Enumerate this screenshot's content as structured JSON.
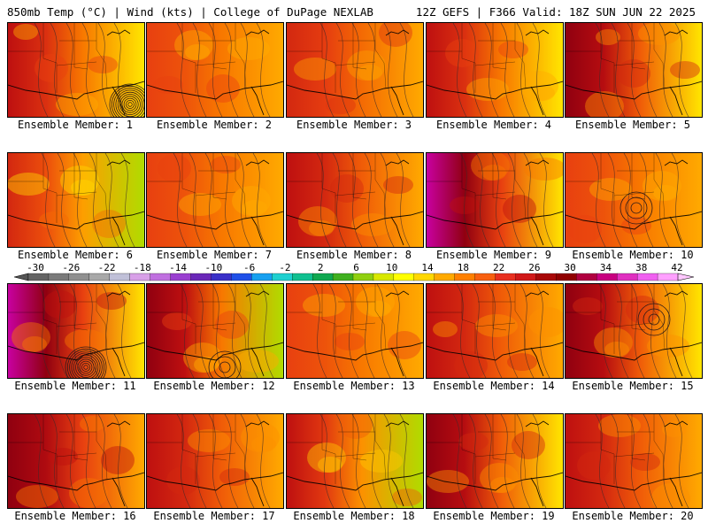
{
  "header": {
    "left": "850mb Temp (°C) | Wind (kts) | College of DuPage NEXLAB",
    "right": "12Z GEFS | F366 Valid: 18Z SUN JUN 22 2025"
  },
  "chart_data": {
    "type": "heatmap",
    "title": "850mb Temp (°C) | Wind (kts)",
    "subtitle": "12Z GEFS | F366 Valid: 18Z SUN JUN 22 2025",
    "panels": [
      {
        "label": "Ensemble Member: 1",
        "west_temp": 30,
        "east_temp": 14,
        "low_center": "southeast",
        "strong_low": true
      },
      {
        "label": "Ensemble Member: 2",
        "west_temp": 26,
        "east_temp": 18
      },
      {
        "label": "Ensemble Member: 3",
        "west_temp": 28,
        "east_temp": 18
      },
      {
        "label": "Ensemble Member: 4",
        "west_temp": 30,
        "east_temp": 14
      },
      {
        "label": "Ensemble Member: 5",
        "west_temp": 34,
        "east_temp": 14
      },
      {
        "label": "Ensemble Member: 6",
        "west_temp": 28,
        "east_temp": 10
      },
      {
        "label": "Ensemble Member: 7",
        "west_temp": 26,
        "east_temp": 18
      },
      {
        "label": "Ensemble Member: 8",
        "west_temp": 30,
        "east_temp": 18
      },
      {
        "label": "Ensemble Member: 9",
        "west_temp": 38,
        "east_temp": 14
      },
      {
        "label": "Ensemble Member: 10",
        "west_temp": 26,
        "east_temp": 18,
        "low_center": "center"
      },
      {
        "label": "Ensemble Member: 11",
        "west_temp": 38,
        "east_temp": 14,
        "low_center": "south",
        "strong_low": true
      },
      {
        "label": "Ensemble Member: 12",
        "west_temp": 34,
        "east_temp": 10,
        "low_center": "south"
      },
      {
        "label": "Ensemble Member: 13",
        "west_temp": 26,
        "east_temp": 18
      },
      {
        "label": "Ensemble Member: 14",
        "west_temp": 30,
        "east_temp": 18
      },
      {
        "label": "Ensemble Member: 15",
        "west_temp": 34,
        "east_temp": 14,
        "low_center": "northeast"
      },
      {
        "label": "Ensemble Member: 16",
        "west_temp": 34,
        "east_temp": 18
      },
      {
        "label": "Ensemble Member: 17",
        "west_temp": 30,
        "east_temp": 18
      },
      {
        "label": "Ensemble Member: 18",
        "west_temp": 30,
        "east_temp": 10
      },
      {
        "label": "Ensemble Member: 19",
        "west_temp": 34,
        "east_temp": 14
      },
      {
        "label": "Ensemble Member: 20",
        "west_temp": 30,
        "east_temp": 18
      }
    ],
    "colorbar": {
      "ticks": [
        "-30",
        "-26",
        "-22",
        "-18",
        "-14",
        "-10",
        "-6",
        "-2",
        "2",
        "6",
        "10",
        "14",
        "18",
        "22",
        "26",
        "30",
        "34",
        "38",
        "42"
      ],
      "tick_values": [
        -30,
        -26,
        -22,
        -18,
        -14,
        -10,
        -6,
        -2,
        2,
        6,
        10,
        14,
        18,
        22,
        26,
        30,
        34,
        38,
        42
      ],
      "colors": [
        "#646464",
        "#7a7a7a",
        "#909090",
        "#a8a8a8",
        "#c0c0d8",
        "#d8a0e8",
        "#c070e0",
        "#9a40d0",
        "#6a28b8",
        "#3a30c8",
        "#2050e8",
        "#18a0f0",
        "#20d0d0",
        "#10c090",
        "#10a850",
        "#40b020",
        "#90d010",
        "#d8e800",
        "#ffff00",
        "#ffd800",
        "#ffaa00",
        "#ff8000",
        "#f86010",
        "#e83020",
        "#d01818",
        "#a80808",
        "#900000",
        "#b00040",
        "#c80080",
        "#e030c0",
        "#f060f0",
        "#ffa0ff"
      ]
    }
  }
}
